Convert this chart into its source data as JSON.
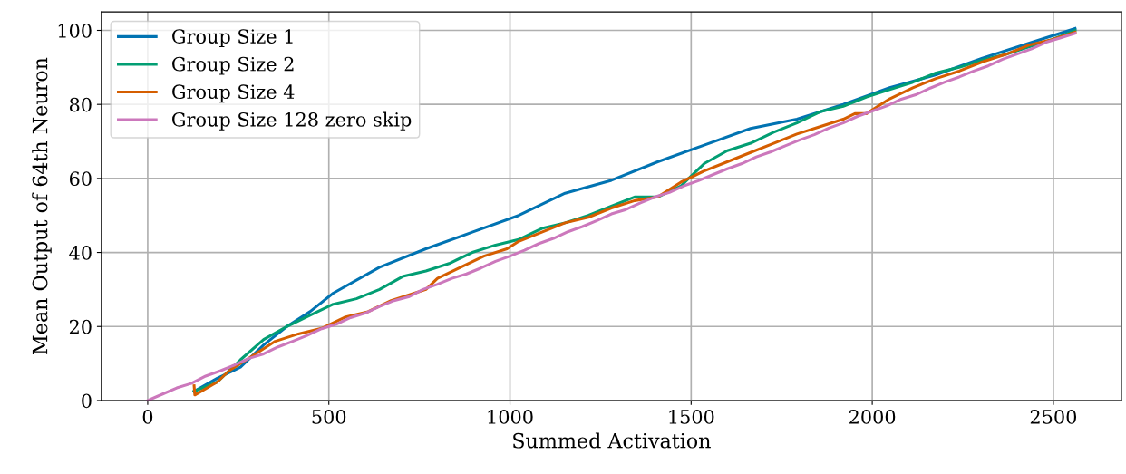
{
  "chart_data": {
    "type": "line",
    "xlabel": "Summed Activation",
    "ylabel": "Mean Output of 64th Neuron",
    "xlim": [
      -128,
      2688
    ],
    "ylim": [
      0,
      105
    ],
    "xticks": [
      0,
      500,
      1000,
      1500,
      2000,
      2500
    ],
    "yticks": [
      0,
      20,
      40,
      60,
      80,
      100
    ],
    "grid": true,
    "legend": "top left",
    "line_style": "solid",
    "marker": "none",
    "series": [
      {
        "name": "Group Size 1",
        "color": "#0173b2",
        "x": [
          128,
          192,
          256,
          320,
          384,
          448,
          512,
          640,
          768,
          896,
          1024,
          1152,
          1280,
          1408,
          1536,
          1664,
          1792,
          1920,
          2048,
          2176,
          2304,
          2432,
          2560
        ],
        "values": [
          2.5,
          6,
          9,
          15,
          20,
          24,
          29,
          36,
          41,
          45.5,
          50,
          56,
          59.5,
          64.5,
          69,
          73.5,
          76,
          80,
          84.5,
          88,
          92.5,
          96.5,
          100.5
        ]
      },
      {
        "name": "Group Size 2",
        "color": "#029e73",
        "x": [
          128,
          192,
          256,
          320,
          384,
          448,
          512,
          576,
          640,
          704,
          768,
          832,
          896,
          960,
          1024,
          1088,
          1152,
          1216,
          1280,
          1344,
          1408,
          1472,
          1536,
          1600,
          1664,
          1728,
          1792,
          1856,
          1920,
          1984,
          2048,
          2112,
          2176,
          2240,
          2304,
          2368,
          2432,
          2496,
          2560
        ],
        "values": [
          2.5,
          5,
          11,
          16.5,
          20,
          23,
          26,
          27.5,
          30,
          33.5,
          35,
          37,
          40,
          42,
          43.5,
          46.5,
          48,
          50,
          52.5,
          55,
          55,
          58,
          64,
          67.5,
          69.5,
          72.5,
          75,
          78,
          79.5,
          82,
          84,
          86,
          88.5,
          90,
          92,
          93.5,
          95.5,
          97.5,
          100
        ]
      },
      {
        "name": "Group Size 4",
        "color": "#d55e00",
        "x": [
          128,
          130,
          192,
          224,
          288,
          352,
          416,
          480,
          544,
          608,
          672,
          736,
          768,
          800,
          864,
          928,
          992,
          1024,
          1088,
          1152,
          1216,
          1280,
          1344,
          1408,
          1472,
          1536,
          1600,
          1664,
          1728,
          1792,
          1856,
          1920,
          1952,
          1984,
          2048,
          2112,
          2176,
          2240,
          2304,
          2368,
          2432,
          2496,
          2560
        ],
        "values": [
          4,
          1.5,
          5,
          8,
          12,
          16,
          18,
          19.5,
          22.5,
          24,
          27,
          29,
          30,
          33,
          36,
          39,
          41,
          43,
          45.5,
          48,
          49.5,
          52,
          54,
          55,
          59,
          62,
          64.5,
          67,
          69.5,
          72,
          74,
          76,
          77.5,
          77.5,
          81.5,
          84.5,
          87,
          89,
          91.5,
          93.5,
          96,
          97.5,
          99.5
        ]
      },
      {
        "name": "Group Size 128 zero skip",
        "color": "#cc78bc",
        "x": [
          0,
          40,
          80,
          120,
          160,
          200,
          240,
          280,
          320,
          360,
          400,
          440,
          480,
          520,
          560,
          600,
          640,
          680,
          720,
          760,
          800,
          840,
          880,
          920,
          960,
          1000,
          1040,
          1080,
          1120,
          1160,
          1200,
          1240,
          1280,
          1320,
          1360,
          1400,
          1440,
          1480,
          1520,
          1560,
          1600,
          1640,
          1680,
          1720,
          1760,
          1800,
          1840,
          1880,
          1920,
          1960,
          2000,
          2040,
          2080,
          2120,
          2160,
          2200,
          2240,
          2280,
          2320,
          2360,
          2400,
          2440,
          2480,
          2520,
          2560
        ],
        "values": [
          0,
          1.7,
          3.4,
          4.6,
          6.6,
          8.0,
          9.6,
          11.4,
          12.6,
          14.5,
          16.0,
          17.6,
          19.4,
          20.6,
          22.4,
          23.6,
          25.4,
          27.0,
          28.0,
          30.0,
          31.4,
          33.0,
          34.2,
          35.8,
          37.6,
          39.0,
          40.6,
          42.4,
          43.8,
          45.6,
          47.0,
          48.6,
          50.4,
          51.6,
          53.4,
          55.0,
          56.2,
          58.0,
          59.4,
          61.0,
          62.6,
          64.0,
          65.8,
          67.2,
          68.8,
          70.4,
          71.8,
          73.6,
          75.0,
          76.8,
          78.2,
          79.6,
          81.4,
          82.6,
          84.4,
          86.0,
          87.4,
          89.0,
          90.4,
          92.2,
          93.6,
          95.0,
          96.8,
          98.0,
          99.2
        ]
      }
    ]
  }
}
